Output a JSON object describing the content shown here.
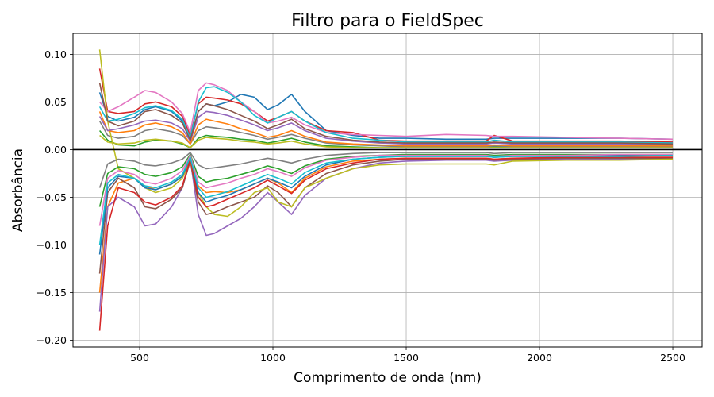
{
  "chart_data": {
    "type": "line",
    "title": "Filtro para o FieldSpec",
    "xlabel": "Comprimento de onda (nm)",
    "ylabel": "Absorbância",
    "xlim": [
      250,
      2610
    ],
    "ylim": [
      -0.207,
      0.122
    ],
    "xticks": [
      500,
      1000,
      1500,
      2000,
      2500
    ],
    "yticks": [
      -0.2,
      -0.15,
      -0.1,
      -0.05,
      0.0,
      0.05,
      0.1
    ],
    "xtick_labels": [
      "500",
      "1000",
      "1500",
      "2000",
      "2500"
    ],
    "ytick_labels": [
      "−0.20",
      "−0.15",
      "−0.10",
      "−0.05",
      "0.00",
      "0.05",
      "0.10"
    ],
    "grid": true,
    "legend": "none",
    "reference_line": {
      "y": 0.0,
      "color": "#000000"
    },
    "x": [
      350,
      380,
      420,
      480,
      520,
      560,
      620,
      660,
      690,
      720,
      750,
      780,
      830,
      880,
      930,
      980,
      1020,
      1070,
      1120,
      1200,
      1300,
      1400,
      1500,
      1650,
      1800,
      1830,
      1900,
      2100,
      2300,
      2500
    ],
    "series": [
      {
        "color": "#1f77b4",
        "values": [
          0.06,
          0.035,
          0.03,
          0.034,
          0.042,
          0.045,
          0.04,
          0.03,
          0.01,
          0.04,
          0.048,
          0.046,
          0.05,
          0.058,
          0.055,
          0.042,
          0.047,
          0.058,
          0.04,
          0.02,
          0.015,
          0.012,
          0.012,
          0.011,
          0.011,
          0.012,
          0.012,
          0.012,
          0.012,
          0.011
        ]
      },
      {
        "color": "#ff7f0e",
        "values": [
          -0.15,
          -0.06,
          -0.035,
          -0.03,
          -0.038,
          -0.042,
          -0.036,
          -0.028,
          -0.012,
          -0.038,
          -0.045,
          -0.044,
          -0.045,
          -0.042,
          -0.036,
          -0.03,
          -0.035,
          -0.045,
          -0.03,
          -0.018,
          -0.012,
          -0.01,
          -0.009,
          -0.009,
          -0.009,
          -0.01,
          -0.009,
          -0.009,
          -0.009,
          -0.009
        ]
      },
      {
        "color": "#2ca02c",
        "values": [
          0.02,
          0.01,
          0.005,
          0.004,
          0.008,
          0.01,
          0.009,
          0.006,
          0.002,
          0.012,
          0.015,
          0.014,
          0.013,
          0.011,
          0.01,
          0.007,
          0.009,
          0.012,
          0.008,
          0.004,
          0.003,
          0.002,
          0.002,
          0.002,
          0.002,
          0.003,
          0.002,
          0.002,
          0.002,
          0.002
        ]
      },
      {
        "color": "#d62728",
        "values": [
          0.085,
          0.04,
          0.038,
          0.04,
          0.048,
          0.05,
          0.045,
          0.035,
          0.015,
          0.048,
          0.055,
          0.054,
          0.052,
          0.048,
          0.04,
          0.03,
          0.034,
          0.04,
          0.03,
          0.02,
          0.018,
          0.01,
          0.009,
          0.009,
          0.009,
          0.015,
          0.009,
          0.009,
          0.009,
          0.008
        ]
      },
      {
        "color": "#9467bd",
        "values": [
          -0.17,
          -0.06,
          -0.05,
          -0.06,
          -0.08,
          -0.078,
          -0.06,
          -0.04,
          -0.01,
          -0.068,
          -0.09,
          -0.088,
          -0.08,
          -0.072,
          -0.06,
          -0.045,
          -0.055,
          -0.068,
          -0.048,
          -0.03,
          -0.02,
          -0.014,
          -0.012,
          -0.011,
          -0.011,
          -0.012,
          -0.011,
          -0.01,
          -0.01,
          -0.01
        ]
      },
      {
        "color": "#8c564b",
        "values": [
          -0.13,
          -0.045,
          -0.03,
          -0.04,
          -0.06,
          -0.062,
          -0.052,
          -0.04,
          -0.012,
          -0.055,
          -0.068,
          -0.066,
          -0.06,
          -0.055,
          -0.05,
          -0.038,
          -0.045,
          -0.06,
          -0.04,
          -0.025,
          -0.016,
          -0.012,
          -0.01,
          -0.01,
          -0.01,
          -0.011,
          -0.01,
          -0.009,
          -0.009,
          -0.009
        ]
      },
      {
        "color": "#e377c2",
        "values": [
          0.05,
          0.04,
          0.045,
          0.055,
          0.062,
          0.06,
          0.05,
          0.038,
          0.018,
          0.062,
          0.07,
          0.068,
          0.062,
          0.05,
          0.04,
          0.028,
          0.03,
          0.034,
          0.026,
          0.018,
          0.016,
          0.015,
          0.014,
          0.016,
          0.015,
          0.014,
          0.014,
          0.013,
          0.012,
          0.011
        ]
      },
      {
        "color": "#7f7f7f",
        "values": [
          0.03,
          0.015,
          0.012,
          0.014,
          0.02,
          0.022,
          0.019,
          0.015,
          0.006,
          0.02,
          0.024,
          0.023,
          0.021,
          0.018,
          0.015,
          0.011,
          0.013,
          0.016,
          0.012,
          0.007,
          0.005,
          0.004,
          0.003,
          0.003,
          0.003,
          0.004,
          0.003,
          0.003,
          0.003,
          0.003
        ]
      },
      {
        "color": "#bcbd22",
        "values": [
          0.105,
          0.03,
          -0.02,
          -0.03,
          -0.04,
          -0.045,
          -0.04,
          -0.03,
          -0.012,
          -0.045,
          -0.06,
          -0.068,
          -0.07,
          -0.06,
          -0.045,
          -0.04,
          -0.055,
          -0.06,
          -0.04,
          -0.03,
          -0.02,
          -0.016,
          -0.015,
          -0.015,
          -0.015,
          -0.016,
          -0.012,
          -0.011,
          -0.011,
          -0.01
        ]
      },
      {
        "color": "#17becf",
        "values": [
          0.045,
          0.03,
          0.032,
          0.038,
          0.044,
          0.046,
          0.041,
          0.032,
          0.012,
          0.05,
          0.065,
          0.066,
          0.06,
          0.05,
          0.036,
          0.028,
          0.034,
          0.04,
          0.03,
          0.018,
          0.012,
          0.01,
          0.008,
          0.008,
          0.008,
          0.01,
          0.008,
          0.008,
          0.008,
          0.007
        ]
      },
      {
        "color": "#1f77b4",
        "values": [
          -0.11,
          -0.04,
          -0.028,
          -0.03,
          -0.04,
          -0.042,
          -0.036,
          -0.028,
          -0.008,
          -0.045,
          -0.055,
          -0.052,
          -0.048,
          -0.042,
          -0.036,
          -0.03,
          -0.034,
          -0.04,
          -0.028,
          -0.016,
          -0.01,
          -0.008,
          -0.007,
          -0.007,
          -0.007,
          -0.008,
          -0.007,
          -0.007,
          -0.006,
          -0.006
        ]
      },
      {
        "color": "#ff7f0e",
        "values": [
          0.04,
          0.02,
          0.018,
          0.02,
          0.026,
          0.028,
          0.024,
          0.018,
          0.006,
          0.026,
          0.032,
          0.03,
          0.027,
          0.022,
          0.018,
          0.013,
          0.015,
          0.02,
          0.014,
          0.008,
          0.006,
          0.005,
          0.004,
          0.004,
          0.004,
          0.005,
          0.004,
          0.004,
          0.004,
          0.004
        ]
      },
      {
        "color": "#2ca02c",
        "values": [
          -0.06,
          -0.025,
          -0.018,
          -0.02,
          -0.026,
          -0.028,
          -0.024,
          -0.018,
          -0.005,
          -0.028,
          -0.034,
          -0.032,
          -0.03,
          -0.026,
          -0.022,
          -0.017,
          -0.02,
          -0.025,
          -0.017,
          -0.01,
          -0.007,
          -0.006,
          -0.005,
          -0.005,
          -0.005,
          -0.006,
          -0.005,
          -0.005,
          -0.005,
          -0.005
        ]
      },
      {
        "color": "#d62728",
        "values": [
          -0.19,
          -0.08,
          -0.04,
          -0.045,
          -0.055,
          -0.058,
          -0.05,
          -0.038,
          -0.01,
          -0.05,
          -0.06,
          -0.058,
          -0.052,
          -0.046,
          -0.04,
          -0.032,
          -0.038,
          -0.046,
          -0.032,
          -0.02,
          -0.014,
          -0.01,
          -0.009,
          -0.009,
          -0.009,
          -0.01,
          -0.009,
          -0.008,
          -0.008,
          -0.008
        ]
      },
      {
        "color": "#9467bd",
        "values": [
          0.035,
          0.02,
          0.022,
          0.026,
          0.03,
          0.031,
          0.028,
          0.022,
          0.009,
          0.034,
          0.04,
          0.039,
          0.036,
          0.031,
          0.026,
          0.02,
          0.023,
          0.028,
          0.02,
          0.012,
          0.009,
          0.007,
          0.006,
          0.006,
          0.006,
          0.007,
          0.006,
          0.006,
          0.006,
          0.005
        ]
      },
      {
        "color": "#8c564b",
        "values": [
          0.07,
          0.03,
          0.025,
          0.03,
          0.04,
          0.042,
          0.036,
          0.028,
          0.01,
          0.04,
          0.048,
          0.046,
          0.042,
          0.036,
          0.03,
          0.022,
          0.026,
          0.032,
          0.022,
          0.014,
          0.01,
          0.008,
          0.007,
          0.007,
          0.007,
          0.008,
          0.007,
          0.007,
          0.007,
          0.006
        ]
      },
      {
        "color": "#e377c2",
        "values": [
          -0.08,
          -0.03,
          -0.022,
          -0.026,
          -0.034,
          -0.036,
          -0.03,
          -0.022,
          -0.006,
          -0.034,
          -0.04,
          -0.038,
          -0.035,
          -0.03,
          -0.026,
          -0.02,
          -0.023,
          -0.028,
          -0.019,
          -0.011,
          -0.008,
          -0.006,
          -0.006,
          -0.006,
          -0.006,
          -0.007,
          -0.006,
          -0.006,
          -0.005,
          -0.005
        ]
      },
      {
        "color": "#7f7f7f",
        "values": [
          -0.04,
          -0.015,
          -0.01,
          -0.012,
          -0.016,
          -0.017,
          -0.014,
          -0.01,
          -0.003,
          -0.016,
          -0.02,
          -0.019,
          -0.017,
          -0.015,
          -0.012,
          -0.009,
          -0.011,
          -0.014,
          -0.01,
          -0.006,
          -0.004,
          -0.003,
          -0.003,
          -0.003,
          -0.003,
          -0.004,
          -0.003,
          -0.003,
          -0.003,
          -0.003
        ]
      },
      {
        "color": "#bcbd22",
        "values": [
          0.015,
          0.008,
          0.006,
          0.007,
          0.01,
          0.011,
          0.009,
          0.007,
          0.002,
          0.01,
          0.013,
          0.012,
          0.011,
          0.009,
          0.008,
          0.006,
          0.007,
          0.009,
          0.006,
          0.003,
          0.002,
          0.002,
          0.002,
          0.002,
          0.002,
          0.002,
          0.002,
          0.002,
          0.002,
          0.002
        ]
      },
      {
        "color": "#17becf",
        "values": [
          -0.1,
          -0.035,
          -0.026,
          -0.03,
          -0.038,
          -0.04,
          -0.034,
          -0.026,
          -0.008,
          -0.04,
          -0.05,
          -0.048,
          -0.044,
          -0.038,
          -0.032,
          -0.026,
          -0.03,
          -0.036,
          -0.024,
          -0.014,
          -0.01,
          -0.008,
          -0.007,
          -0.007,
          -0.007,
          -0.008,
          -0.007,
          -0.007,
          -0.007,
          -0.006
        ]
      }
    ]
  }
}
